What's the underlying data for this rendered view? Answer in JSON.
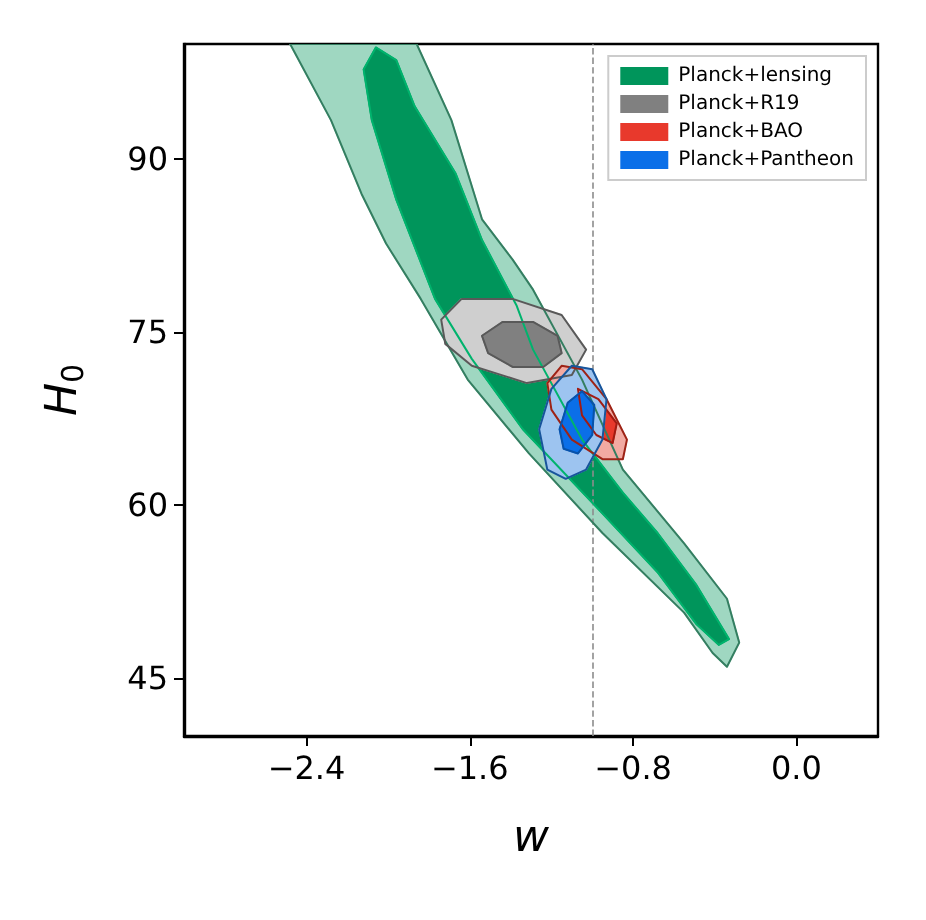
{
  "chart_data": {
    "type": "area",
    "xlabel": "w",
    "ylabel": "H$_{0}$",
    "xlim": [
      -3.0,
      0.4
    ],
    "ylim": [
      40,
      100
    ],
    "xticks": [
      {
        "value": -2.4,
        "label": "−2.4"
      },
      {
        "value": -1.6,
        "label": "−1.6"
      },
      {
        "value": -0.8,
        "label": "−0.8"
      },
      {
        "value": 0,
        "label": "0.0"
      }
    ],
    "yticks": [
      45,
      60,
      75,
      90
    ],
    "grid": false,
    "legend": "top right",
    "ref_lines": [
      {
        "axis": "x",
        "value": -1.0,
        "color": "#8c8c8c",
        "line_style": "dashed"
      }
    ],
    "series": [
      {
        "color": "#9fd7c1",
        "x": [
          -2.48,
          -2.28,
          -2.13,
          -2.01,
          -1.84,
          -1.61,
          -1.31,
          -0.95,
          -0.55,
          -0.41,
          -0.34,
          -0.28,
          -0.34,
          -0.55,
          -0.85,
          -1.05,
          -1.29,
          -1.39,
          -1.54,
          -1.69,
          -1.86
        ],
        "values": [
          100,
          93.4,
          87.0,
          82.7,
          77.9,
          70.9,
          64.5,
          57.6,
          50.7,
          47.2,
          46.0,
          48.1,
          51.9,
          56.7,
          63.1,
          70.9,
          78.7,
          81.3,
          84.8,
          93.4,
          100
        ]
      },
      {
        "name": "Planck+lensing",
        "color": "#00955b",
        "x": [
          -2.06,
          -2.12,
          -2.08,
          -1.96,
          -1.77,
          -1.59,
          -1.34,
          -0.95,
          -0.68,
          -0.49,
          -0.38,
          -0.33,
          -0.49,
          -0.68,
          -0.85,
          -1.05,
          -1.29,
          -1.37,
          -1.54,
          -1.67,
          -1.87,
          -1.96
        ],
        "values": [
          99.7,
          97.8,
          93.4,
          86.5,
          77.9,
          72.7,
          66.6,
          59.3,
          54.2,
          49.7,
          47.9,
          48.4,
          53.1,
          57.6,
          61.1,
          65.7,
          73.5,
          77.3,
          83.0,
          88.8,
          94.6,
          98.6
        ]
      },
      {
        "color": "#cfcfcf",
        "x": [
          -1.74,
          -1.64,
          -1.39,
          -1.15,
          -1.03,
          -1.1,
          -1.32,
          -1.59,
          -1.72
        ],
        "values": [
          76.1,
          77.9,
          77.9,
          76.5,
          73.5,
          71.3,
          70.6,
          72.1,
          74.0
        ]
      },
      {
        "name": "Planck+R19",
        "color": "#808080",
        "x": [
          -1.54,
          -1.44,
          -1.29,
          -1.17,
          -1.15,
          -1.24,
          -1.39,
          -1.51
        ],
        "values": [
          74.7,
          75.9,
          75.9,
          74.7,
          73.2,
          72.0,
          72.0,
          73.2
        ]
      },
      {
        "color": "#f2aaa2",
        "x": [
          -1.22,
          -1.15,
          -1.05,
          -0.93,
          -0.83,
          -0.85,
          -0.95,
          -1.1,
          -1.2
        ],
        "values": [
          70.6,
          72.1,
          71.8,
          69.2,
          65.7,
          64.0,
          64.0,
          65.7,
          68.3
        ]
      },
      {
        "name": "Planck+BAO",
        "color": "#e8392c",
        "x": [
          -1.07,
          -0.97,
          -0.88,
          -0.9,
          -0.98,
          -1.05
        ],
        "values": [
          70.1,
          69.2,
          67.1,
          65.4,
          66.1,
          67.8
        ]
      },
      {
        "color": "#9dc4f0",
        "x": [
          -1.26,
          -1.2,
          -1.1,
          -1.0,
          -0.93,
          -0.95,
          -1.03,
          -1.13,
          -1.22
        ],
        "values": [
          66.6,
          70.1,
          72.1,
          71.8,
          69.2,
          65.7,
          63.1,
          62.3,
          63.1
        ]
      },
      {
        "name": "Planck+Pantheon",
        "color": "#0b6fe8",
        "x": [
          -1.16,
          -1.12,
          -1.05,
          -0.99,
          -1.0,
          -1.07,
          -1.14
        ],
        "values": [
          66.6,
          68.9,
          69.9,
          68.7,
          66.1,
          64.5,
          64.9
        ]
      }
    ]
  }
}
